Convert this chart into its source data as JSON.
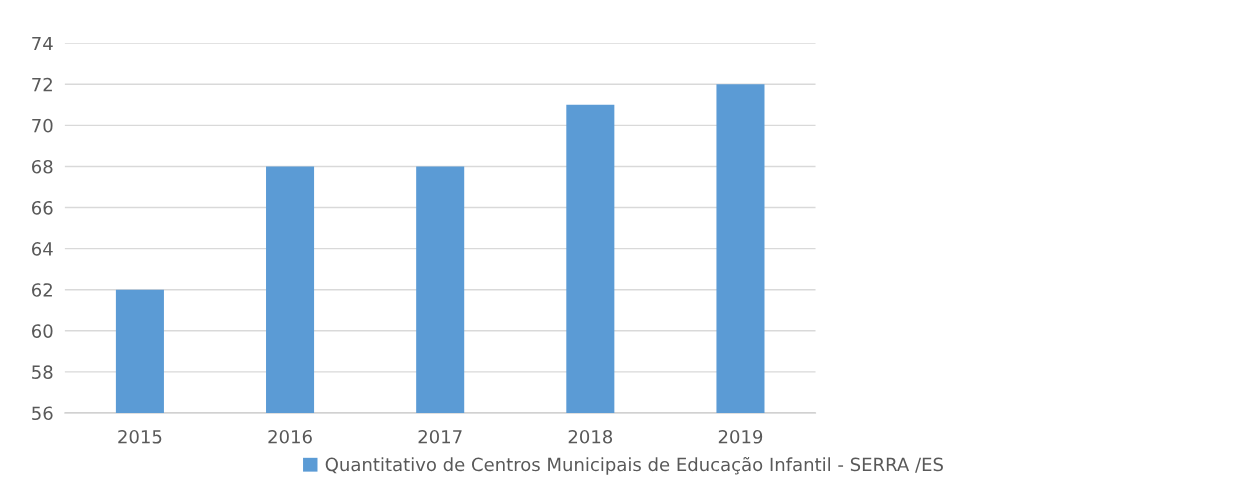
{
  "chart_data": {
    "type": "bar",
    "categories": [
      "2015",
      "2016",
      "2017",
      "2018",
      "2019"
    ],
    "series": [
      {
        "name": "Quantitativo de Centros Municipais de Educação Infantil - SERRA /ES",
        "color": "#5b9bd5",
        "values": [
          62,
          68,
          68,
          71,
          72
        ]
      }
    ],
    "ylim": [
      56,
      74
    ],
    "yticks": [
      56,
      58,
      60,
      62,
      64,
      66,
      68,
      70,
      72,
      74
    ],
    "grid": "y",
    "legend": "bottom"
  }
}
